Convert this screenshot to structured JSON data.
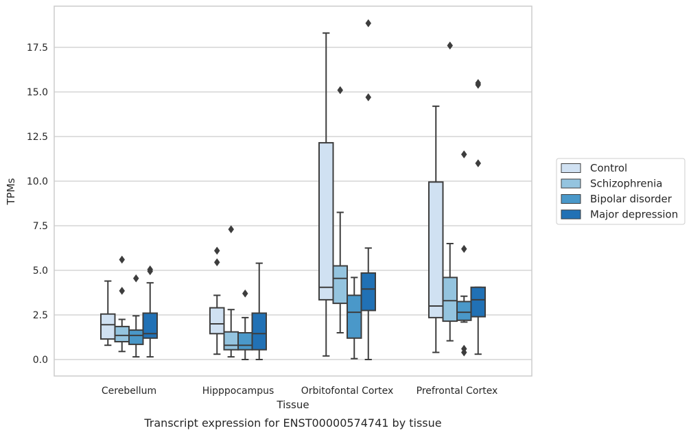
{
  "caption": "Transcript expression for ENST00000574741 by tissue",
  "chart_data": {
    "type": "boxplot",
    "xlabel": "Tissue",
    "ylabel": "TPMs",
    "ylim": [
      -0.9,
      19.7
    ],
    "yticks": [
      0.0,
      2.5,
      5.0,
      7.5,
      10.0,
      12.5,
      15.0,
      17.5
    ],
    "ytick_labels": [
      "0.0",
      "2.5",
      "5.0",
      "7.5",
      "10.0",
      "12.5",
      "15.0",
      "17.5"
    ],
    "grid": "horizontal",
    "legend_position": "right",
    "categories": [
      "Cerebellum",
      "Hipppocampus",
      "Orbitofontal Cortex",
      "Prefrontal Cortex"
    ],
    "series": [
      {
        "name": "Control",
        "color": "#d0e1f2",
        "boxes": [
          {
            "whisker_low": 0.8,
            "q1": 1.15,
            "median": 1.95,
            "q3": 2.55,
            "whisker_high": 4.4,
            "outliers": []
          },
          {
            "whisker_low": 0.3,
            "q1": 1.45,
            "median": 2.0,
            "q3": 2.9,
            "whisker_high": 3.6,
            "outliers": [
              5.45,
              6.1
            ]
          },
          {
            "whisker_low": 0.2,
            "q1": 3.35,
            "median": 4.05,
            "q3": 12.15,
            "whisker_high": 18.3,
            "outliers": []
          },
          {
            "whisker_low": 0.4,
            "q1": 2.35,
            "median": 3.0,
            "q3": 9.95,
            "whisker_high": 14.2,
            "outliers": []
          }
        ]
      },
      {
        "name": "Schizophrenia",
        "color": "#94c4df",
        "boxes": [
          {
            "whisker_low": 0.45,
            "q1": 1.0,
            "median": 1.35,
            "q3": 1.85,
            "whisker_high": 2.25,
            "outliers": [
              3.85,
              5.6
            ]
          },
          {
            "whisker_low": 0.15,
            "q1": 0.55,
            "median": 0.8,
            "q3": 1.55,
            "whisker_high": 2.8,
            "outliers": [
              7.3
            ]
          },
          {
            "whisker_low": 1.5,
            "q1": 3.15,
            "median": 4.55,
            "q3": 5.25,
            "whisker_high": 8.25,
            "outliers": [
              15.1
            ]
          },
          {
            "whisker_low": 1.05,
            "q1": 2.15,
            "median": 3.3,
            "q3": 4.6,
            "whisker_high": 6.5,
            "outliers": [
              17.6
            ]
          }
        ]
      },
      {
        "name": "Bipolar disorder",
        "color": "#4a98c9",
        "boxes": [
          {
            "whisker_low": 0.15,
            "q1": 0.85,
            "median": 1.35,
            "q3": 1.65,
            "whisker_high": 2.45,
            "outliers": [
              4.55
            ]
          },
          {
            "whisker_low": 0.0,
            "q1": 0.55,
            "median": 0.8,
            "q3": 1.5,
            "whisker_high": 2.35,
            "outliers": [
              3.7
            ]
          },
          {
            "whisker_low": 0.05,
            "q1": 1.2,
            "median": 2.65,
            "q3": 3.6,
            "whisker_high": 4.6,
            "outliers": []
          },
          {
            "whisker_low": 2.1,
            "q1": 2.2,
            "median": 2.65,
            "q3": 3.25,
            "whisker_high": 3.55,
            "outliers": [
              0.4,
              0.6,
              6.2,
              11.5
            ]
          }
        ]
      },
      {
        "name": "Major depression",
        "color": "#2171b5",
        "boxes": [
          {
            "whisker_low": 0.15,
            "q1": 1.2,
            "median": 1.45,
            "q3": 2.6,
            "whisker_high": 4.3,
            "outliers": [
              4.95,
              5.05
            ]
          },
          {
            "whisker_low": 0.0,
            "q1": 0.55,
            "median": 1.45,
            "q3": 2.6,
            "whisker_high": 5.4,
            "outliers": []
          },
          {
            "whisker_low": 0.0,
            "q1": 2.75,
            "median": 3.95,
            "q3": 4.85,
            "whisker_high": 6.25,
            "outliers": [
              14.7,
              18.85
            ]
          },
          {
            "whisker_low": 0.3,
            "q1": 2.4,
            "median": 3.35,
            "q3": 4.05,
            "whisker_high": 4.05,
            "outliers": [
              11.0,
              15.4,
              15.5
            ]
          }
        ]
      }
    ]
  }
}
